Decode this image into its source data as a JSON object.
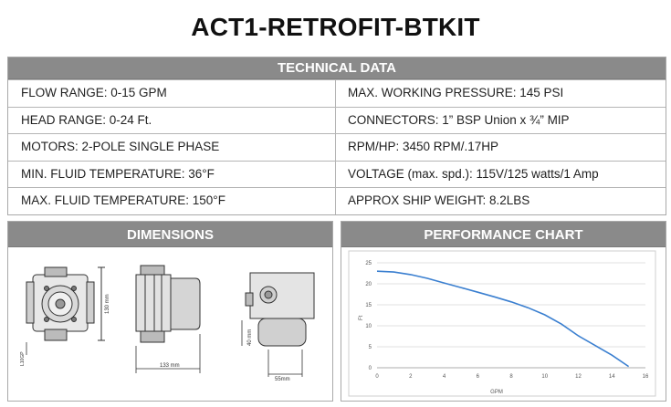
{
  "title": "ACT1-RETROFIT-BTKIT",
  "technical": {
    "header": "TECHNICAL DATA",
    "rows": [
      {
        "left": "FLOW RANGE: 0-15 GPM",
        "right": "MAX. WORKING PRESSURE: 145 PSI"
      },
      {
        "left": "HEAD RANGE: 0-24 Ft.",
        "right": "CONNECTORS: 1” BSP Union x ¾” MIP"
      },
      {
        "left": "MOTORS: 2-POLE SINGLE PHASE",
        "right": "RPM/HP: 3450 RPM/.17HP"
      },
      {
        "left": "MIN. FLUID TEMPERATURE: 36°F",
        "right": "VOLTAGE (max. spd.): 115V/125 watts/1 Amp"
      },
      {
        "left": "MAX. FLUID TEMPERATURE: 150°F",
        "right": "APPROX SHIP WEIGHT: 8.2LBS"
      }
    ]
  },
  "dimensions": {
    "header": "DIMENSIONS",
    "labels": {
      "height": "130 mm",
      "width": "133 mm",
      "depth": "55mm",
      "offset": "40 mm",
      "tag": "L10GP"
    }
  },
  "performance": {
    "header": "PERFORMANCE CHART"
  },
  "chart_data": {
    "type": "line",
    "title": "",
    "xlabel": "GPM",
    "ylabel": "Ft",
    "xlim": [
      0,
      16
    ],
    "ylim": [
      0,
      25
    ],
    "xticks": [
      0,
      2,
      4,
      6,
      8,
      10,
      12,
      14,
      16
    ],
    "yticks": [
      0,
      5,
      10,
      15,
      20,
      25
    ],
    "grid": true,
    "series": [
      {
        "color": "#3a7fd0",
        "x": [
          0,
          1,
          2,
          3,
          4,
          5,
          6,
          7,
          8,
          9,
          10,
          11,
          12,
          13,
          14,
          15
        ],
        "y": [
          23,
          22.8,
          22.2,
          21.3,
          20.2,
          19.1,
          18,
          16.9,
          15.7,
          14.3,
          12.6,
          10.4,
          7.6,
          5.3,
          3,
          0.3
        ]
      }
    ]
  }
}
